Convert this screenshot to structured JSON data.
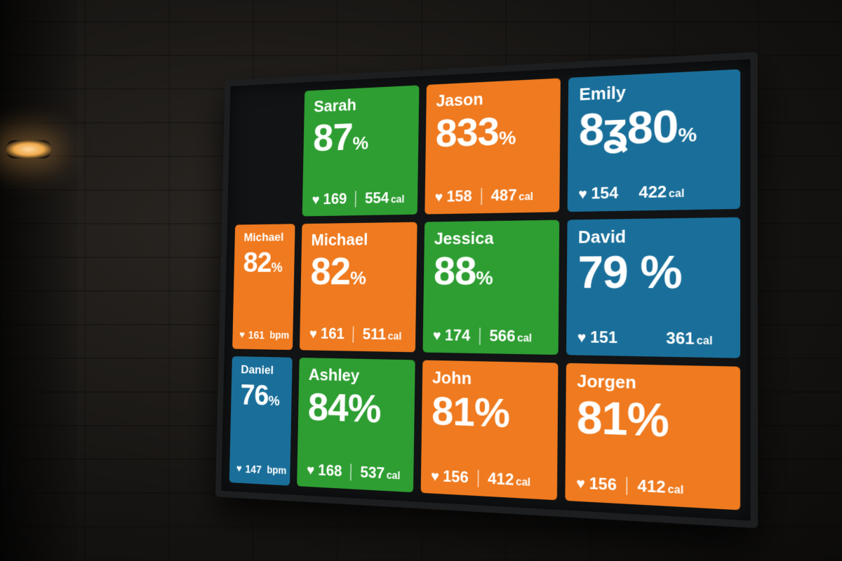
{
  "colors": {
    "green": "#2e9e32",
    "orange": "#ef7a1f",
    "blue": "#1a6f9a"
  },
  "icons": {
    "heart": "heart-icon"
  },
  "tiles": [
    {
      "name": "Sarah",
      "pct": "87",
      "pct_unit": "%",
      "hr": "169",
      "hr_unit": "",
      "cal": "554",
      "cal_unit": "cal",
      "color": "green"
    },
    {
      "name": "Jason",
      "pct": "833",
      "pct_unit": "%",
      "hr": "158",
      "hr_unit": "",
      "cal": "487",
      "cal_unit": "cal",
      "color": "orange"
    },
    {
      "name": "Emily",
      "pct": "8ʓ80",
      "pct_unit": "%",
      "hr": "154",
      "hr_unit": "",
      "cal": "422",
      "cal_unit": "cal",
      "color": "blue"
    },
    {
      "name": "Michael",
      "pct": "82",
      "pct_unit": "%",
      "hr": "161",
      "hr_unit": "bpm",
      "cal": "",
      "cal_unit": "",
      "color": "orange"
    },
    {
      "name": "Michael",
      "pct": "82",
      "pct_unit": "%",
      "hr": "161",
      "hr_unit": "",
      "cal": "511",
      "cal_unit": "cal",
      "color": "orange"
    },
    {
      "name": "Jessica",
      "pct": "88",
      "pct_unit": "%",
      "hr": "174",
      "hr_unit": "",
      "cal": "566",
      "cal_unit": "cal",
      "color": "green"
    },
    {
      "name": "David",
      "pct": "79 ",
      "pct_unit": "%",
      "hr": "151",
      "hr_unit": "",
      "cal": "361",
      "cal_unit": "cal",
      "color": "blue"
    },
    {
      "name": "Daniel",
      "pct": "76",
      "pct_unit": "%",
      "hr": "147",
      "hr_unit": "bpm",
      "cal": "",
      "cal_unit": "",
      "color": "blue"
    },
    {
      "name": "Ashley",
      "pct": "84",
      "pct_unit": "%",
      "hr": "168",
      "hr_unit": "",
      "cal": "537",
      "cal_unit": "cal",
      "color": "green"
    },
    {
      "name": "John",
      "pct": "81",
      "pct_unit": "%",
      "hr": "156",
      "hr_unit": "",
      "cal": "412",
      "cal_unit": "cal",
      "color": "orange"
    },
    {
      "name": "Jorgen",
      "pct": "81",
      "pct_unit": "%",
      "hr": "156",
      "hr_unit": "",
      "cal": "412",
      "cal_unit": "cal",
      "color": "orange"
    }
  ]
}
